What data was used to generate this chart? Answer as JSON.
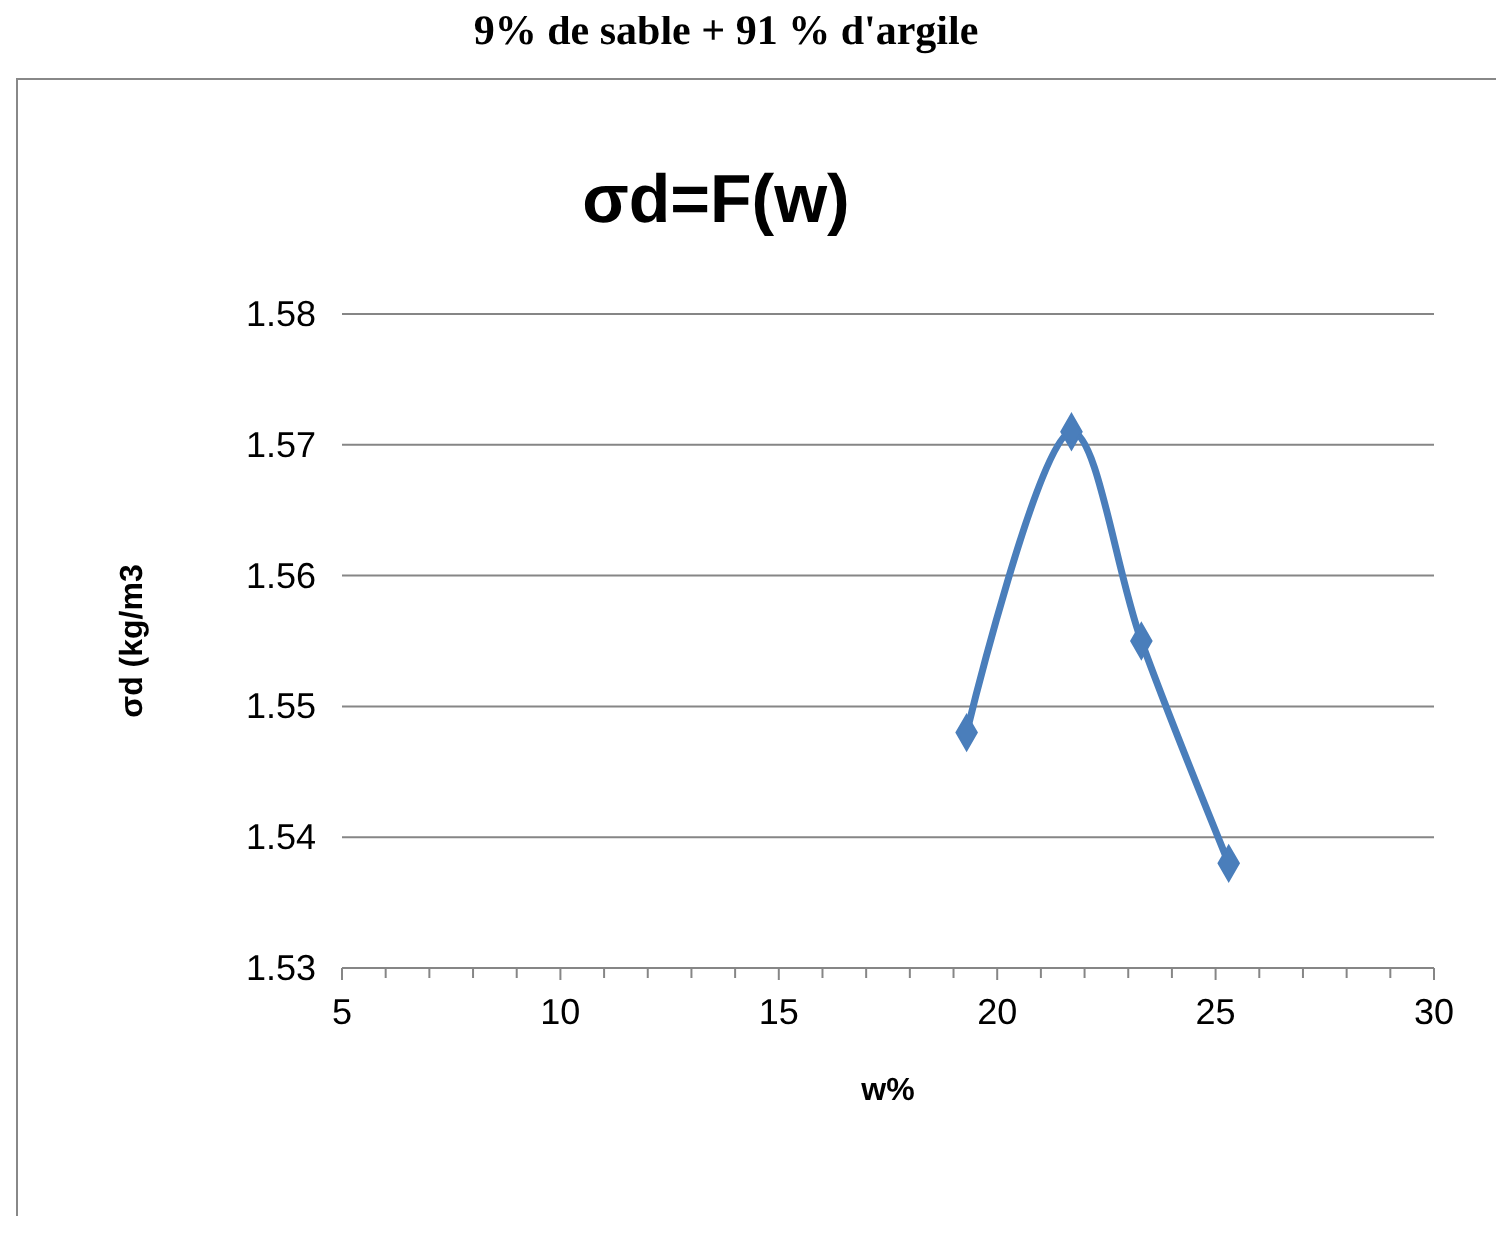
{
  "chart_data": {
    "type": "line",
    "title": "σd=F(w)",
    "subtitle": "9% de sable + 91 % d'argile",
    "xlabel": "w%",
    "ylabel": "σd (kg/m3",
    "x": [
      19.3,
      21.7,
      23.3,
      25.3
    ],
    "series": [
      {
        "color": "#4a7ebb",
        "values": [
          1.548,
          1.571,
          1.555,
          1.538
        ]
      }
    ],
    "xlim": [
      5,
      30
    ],
    "xticks": [
      5,
      {
        "value": 6,
        "label": null
      },
      {
        "value": 7,
        "label": null
      },
      {
        "value": 8,
        "label": null
      },
      {
        "value": 9,
        "label": null
      },
      10,
      {
        "value": 11,
        "label": null
      },
      {
        "value": 12,
        "label": null
      },
      {
        "value": 13,
        "label": null
      },
      {
        "value": 14,
        "label": null
      },
      15,
      {
        "value": 16,
        "label": null
      },
      {
        "value": 17,
        "label": null
      },
      {
        "value": 18,
        "label": null
      },
      {
        "value": 19,
        "label": null
      },
      20,
      {
        "value": 21,
        "label": null
      },
      {
        "value": 22,
        "label": null
      },
      {
        "value": 23,
        "label": null
      },
      {
        "value": 24,
        "label": null
      },
      25,
      {
        "value": 26,
        "label": null
      },
      {
        "value": 27,
        "label": null
      },
      {
        "value": 28,
        "label": null
      },
      {
        "value": 29,
        "label": null
      },
      30
    ],
    "ylim": [
      1.53,
      1.58
    ],
    "yticks": [
      1.53,
      1.54,
      1.55,
      1.56,
      1.57,
      1.58
    ],
    "grid": "y",
    "marker": "diamond",
    "line_style": "solid"
  }
}
